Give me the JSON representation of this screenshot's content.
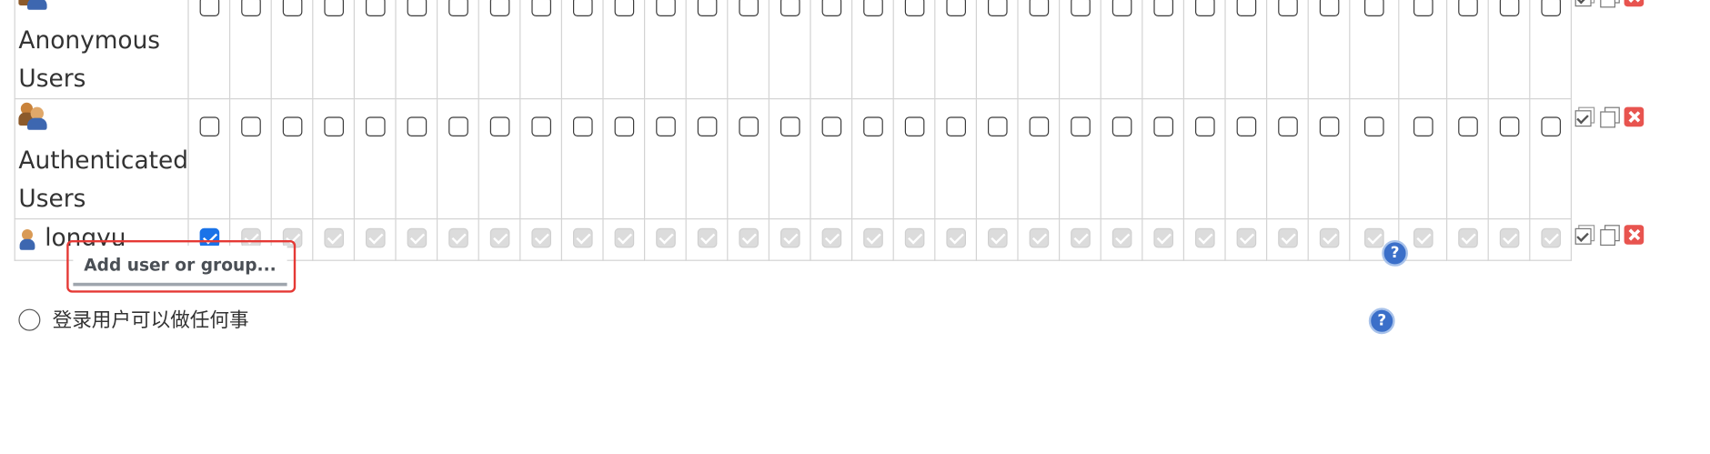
{
  "rows": [
    {
      "name": "Anonymous Users",
      "icon": "group-icon",
      "checked": [],
      "all_checked": false,
      "disabled": false
    },
    {
      "name": "Authenticated Users",
      "icon": "group-icon",
      "checked": [],
      "all_checked": false,
      "disabled": false
    },
    {
      "name": "longyu",
      "icon": "user-icon",
      "checked": [
        0
      ],
      "all_checked": true,
      "disabled": true
    }
  ],
  "permission_column_count": 33,
  "row_actions": [
    "select-all-icon",
    "copy-icon",
    "delete-icon"
  ],
  "add_button": {
    "label": "Add user or group..."
  },
  "help": {
    "label": "?"
  },
  "option": {
    "text": "登录用户可以做任何事"
  },
  "colors": {
    "accent": "#1a73e8",
    "highlight": "#e53935",
    "delete": "#e8544f",
    "help": "#3b6fc9"
  }
}
